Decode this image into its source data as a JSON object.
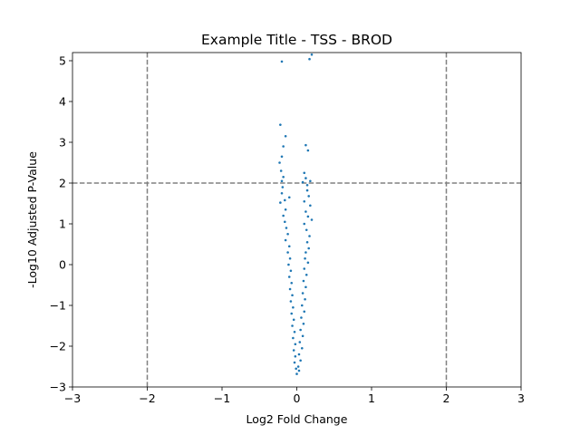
{
  "chart_data": {
    "type": "scatter",
    "title": "Example Title - TSS - BROD",
    "xlabel": "Log2 Fold Change",
    "ylabel": "-Log10 Adjusted P-Value",
    "xlim": [
      -3,
      3
    ],
    "ylim": [
      -3,
      5.2
    ],
    "xticks": [
      -3,
      -2,
      -1,
      0,
      1,
      2,
      3
    ],
    "yticks": [
      -3,
      -2,
      -1,
      0,
      1,
      2,
      3,
      4,
      5
    ],
    "grid": false,
    "point_color": "#1f77b4",
    "threshold_color": "#808080",
    "thresholds": {
      "x": [
        -2,
        2
      ],
      "y": [
        2
      ]
    },
    "series": [
      {
        "points": [
          [
            -0.2,
            4.98
          ],
          [
            0.17,
            5.04
          ],
          [
            0.2,
            5.15
          ],
          [
            -0.22,
            3.43
          ],
          [
            -0.15,
            3.15
          ],
          [
            -0.18,
            2.9
          ],
          [
            0.12,
            2.93
          ],
          [
            0.15,
            2.8
          ],
          [
            -0.2,
            2.65
          ],
          [
            -0.23,
            2.5
          ],
          [
            -0.21,
            2.3
          ],
          [
            -0.18,
            2.15
          ],
          [
            -0.2,
            2.05
          ],
          [
            0.1,
            2.25
          ],
          [
            0.12,
            2.12
          ],
          [
            0.08,
            2.02
          ],
          [
            0.14,
            1.95
          ],
          [
            0.18,
            2.05
          ],
          [
            -0.19,
            1.9
          ],
          [
            -0.2,
            1.75
          ],
          [
            -0.16,
            1.58
          ],
          [
            -0.1,
            1.65
          ],
          [
            -0.22,
            1.52
          ],
          [
            0.14,
            1.82
          ],
          [
            0.16,
            1.68
          ],
          [
            0.1,
            1.55
          ],
          [
            0.18,
            1.45
          ],
          [
            0.12,
            1.3
          ],
          [
            -0.15,
            1.35
          ],
          [
            -0.18,
            1.2
          ],
          [
            -0.16,
            1.05
          ],
          [
            0.15,
            1.18
          ],
          [
            0.2,
            1.1
          ],
          [
            0.1,
            1.0
          ],
          [
            -0.14,
            0.9
          ],
          [
            -0.12,
            0.75
          ],
          [
            0.13,
            0.85
          ],
          [
            0.17,
            0.7
          ],
          [
            -0.15,
            0.6
          ],
          [
            -0.1,
            0.45
          ],
          [
            0.14,
            0.55
          ],
          [
            0.16,
            0.4
          ],
          [
            0.12,
            0.3
          ],
          [
            -0.12,
            0.3
          ],
          [
            -0.09,
            0.15
          ],
          [
            0.11,
            0.15
          ],
          [
            0.15,
            0.05
          ],
          [
            -0.11,
            0.0
          ],
          [
            -0.08,
            -0.15
          ],
          [
            0.1,
            -0.1
          ],
          [
            0.13,
            -0.25
          ],
          [
            -0.1,
            -0.3
          ],
          [
            -0.07,
            -0.45
          ],
          [
            0.09,
            -0.4
          ],
          [
            0.12,
            -0.55
          ],
          [
            -0.09,
            -0.6
          ],
          [
            -0.06,
            -0.75
          ],
          [
            0.08,
            -0.7
          ],
          [
            0.11,
            -0.85
          ],
          [
            -0.08,
            -0.9
          ],
          [
            -0.05,
            -1.05
          ],
          [
            0.07,
            -1.0
          ],
          [
            0.1,
            -1.15
          ],
          [
            -0.07,
            -1.2
          ],
          [
            -0.04,
            -1.35
          ],
          [
            0.06,
            -1.3
          ],
          [
            0.09,
            -1.45
          ],
          [
            -0.06,
            -1.5
          ],
          [
            -0.03,
            -1.65
          ],
          [
            0.05,
            -1.6
          ],
          [
            0.08,
            -1.75
          ],
          [
            -0.05,
            -1.8
          ],
          [
            -0.02,
            -1.95
          ],
          [
            0.04,
            -1.9
          ],
          [
            0.07,
            -2.05
          ],
          [
            -0.04,
            -2.1
          ],
          [
            -0.02,
            -2.25
          ],
          [
            0.03,
            -2.2
          ],
          [
            0.05,
            -2.35
          ],
          [
            -0.03,
            -2.4
          ],
          [
            -0.01,
            -2.55
          ],
          [
            0.02,
            -2.5
          ],
          [
            0.03,
            -2.6
          ],
          [
            0.0,
            -2.68
          ]
        ]
      }
    ]
  }
}
